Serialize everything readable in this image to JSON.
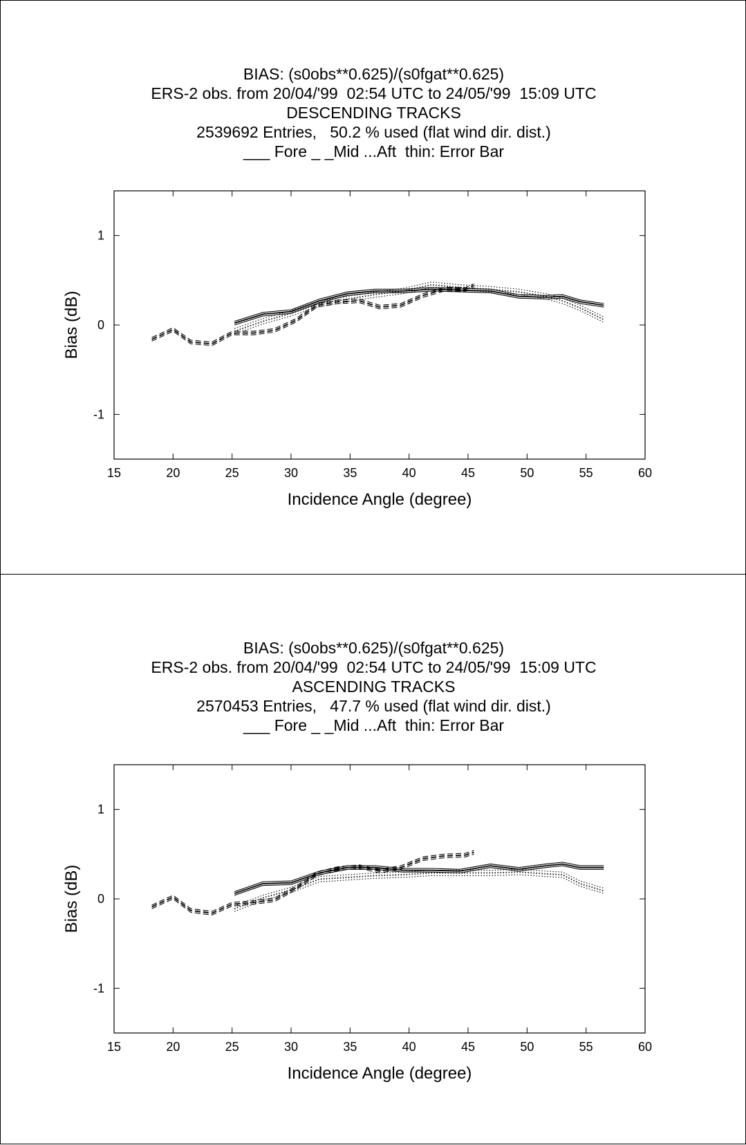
{
  "chart_data": [
    {
      "type": "line",
      "title": "BIAS: (s0obs**0.625)/(s0fgat**0.625)",
      "subtitle": [
        "ERS-2 obs. from 20/04/'99  02:54 UTC to 24/05/'99  15:09 UTC",
        "DESCENDING TRACKS",
        "2539692 Entries,   50.2 % used (flat wind dir. dist.)",
        "___ Fore _ _Mid ...Aft  thin: Error Bar"
      ],
      "xlabel": "Incidence Angle (degree)",
      "ylabel": "Bias  (dB)",
      "xlim": [
        15,
        60
      ],
      "ylim": [
        -1.5,
        1.5
      ],
      "xticks": [
        15,
        20,
        25,
        30,
        35,
        40,
        45,
        50,
        55,
        60
      ],
      "yticks": [
        -1,
        0,
        1
      ],
      "grid": false,
      "series": [
        {
          "name": "Fore",
          "style": "solid",
          "x": [
            25.2,
            27.6,
            30.0,
            32.4,
            34.8,
            37.1,
            39.5,
            41.9,
            44.3,
            46.9,
            49.3,
            51.6,
            53.0,
            54.5,
            56.5
          ],
          "y": [
            0.02,
            0.12,
            0.15,
            0.27,
            0.35,
            0.38,
            0.38,
            0.4,
            0.39,
            0.38,
            0.32,
            0.31,
            0.32,
            0.26,
            0.22
          ],
          "err": 0.02
        },
        {
          "name": "Mid",
          "style": "dashed",
          "x": [
            18.2,
            20.0,
            21.5,
            23.3,
            25.0,
            26.8,
            28.6,
            30.4,
            32.2,
            34.0,
            35.8,
            37.5,
            39.3,
            41.2,
            43.0,
            44.8,
            45.5
          ],
          "y": [
            -0.16,
            -0.05,
            -0.19,
            -0.21,
            -0.09,
            -0.09,
            -0.06,
            0.05,
            0.22,
            0.26,
            0.27,
            0.2,
            0.22,
            0.33,
            0.4,
            0.4,
            0.44
          ],
          "err": 0.02
        },
        {
          "name": "Aft",
          "style": "dotted",
          "x": [
            25.2,
            27.6,
            30.0,
            32.4,
            34.8,
            37.1,
            39.5,
            41.9,
            44.3,
            46.9,
            49.3,
            51.6,
            53.0,
            54.5,
            56.5
          ],
          "y": [
            -0.07,
            0.04,
            0.13,
            0.24,
            0.29,
            0.34,
            0.38,
            0.45,
            0.42,
            0.4,
            0.37,
            0.32,
            0.27,
            0.19,
            0.06
          ],
          "err": 0.03
        }
      ]
    },
    {
      "type": "line",
      "title": "BIAS: (s0obs**0.625)/(s0fgat**0.625)",
      "subtitle": [
        "ERS-2 obs. from 20/04/'99  02:54 UTC to 24/05/'99  15:09 UTC",
        "ASCENDING TRACKS",
        "2570453 Entries,   47.7 % used (flat wind dir. dist.)",
        "___ Fore _ _Mid ...Aft  thin: Error Bar"
      ],
      "xlabel": "Incidence Angle (degree)",
      "ylabel": "Bias  (dB)",
      "xlim": [
        15,
        60
      ],
      "ylim": [
        -1.5,
        1.5
      ],
      "xticks": [
        15,
        20,
        25,
        30,
        35,
        40,
        45,
        50,
        55,
        60
      ],
      "yticks": [
        -1,
        0,
        1
      ],
      "grid": false,
      "series": [
        {
          "name": "Fore",
          "style": "solid",
          "x": [
            25.2,
            27.6,
            30.0,
            32.4,
            34.8,
            37.1,
            39.5,
            41.9,
            44.3,
            46.9,
            49.3,
            51.6,
            53.0,
            54.5,
            56.5
          ],
          "y": [
            0.06,
            0.17,
            0.18,
            0.29,
            0.35,
            0.35,
            0.32,
            0.32,
            0.31,
            0.37,
            0.33,
            0.37,
            0.39,
            0.35,
            0.35
          ],
          "err": 0.02
        },
        {
          "name": "Mid",
          "style": "dashed",
          "x": [
            18.2,
            20.0,
            21.5,
            23.3,
            25.0,
            26.8,
            28.6,
            30.4,
            32.2,
            34.0,
            35.8,
            37.5,
            39.3,
            41.2,
            43.0,
            44.8,
            45.5
          ],
          "y": [
            -0.09,
            0.02,
            -0.13,
            -0.16,
            -0.06,
            -0.04,
            -0.01,
            0.12,
            0.28,
            0.34,
            0.36,
            0.31,
            0.35,
            0.45,
            0.48,
            0.49,
            0.52
          ],
          "err": 0.02
        },
        {
          "name": "Aft",
          "style": "dotted",
          "x": [
            25.2,
            27.6,
            30.0,
            32.4,
            34.8,
            37.1,
            39.5,
            41.9,
            44.3,
            46.9,
            49.3,
            51.6,
            53.0,
            54.5,
            56.5
          ],
          "y": [
            -0.11,
            0.01,
            0.1,
            0.22,
            0.24,
            0.26,
            0.27,
            0.29,
            0.29,
            0.29,
            0.3,
            0.28,
            0.27,
            0.17,
            0.09
          ],
          "err": 0.03
        }
      ]
    }
  ]
}
